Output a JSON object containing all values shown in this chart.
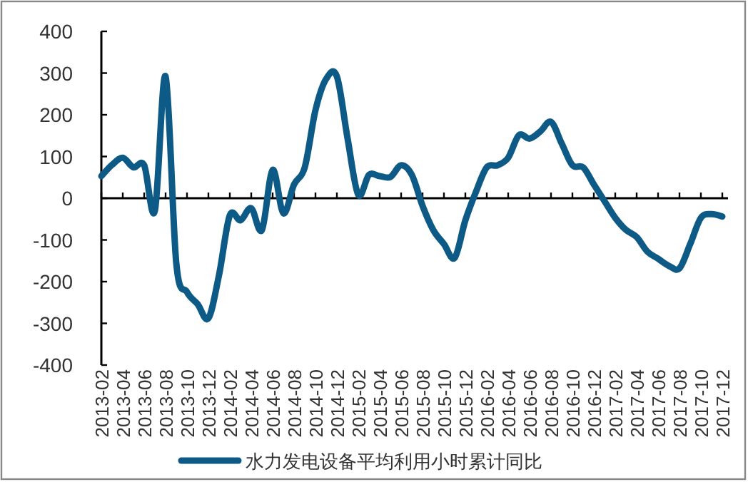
{
  "chart_data": {
    "type": "line",
    "categories": [
      "2013-02",
      null,
      "2013-04",
      null,
      "2013-06",
      null,
      "2013-08",
      null,
      "2013-10",
      null,
      "2013-12",
      null,
      "2014-02",
      null,
      "2014-04",
      null,
      "2014-06",
      null,
      "2014-08",
      null,
      "2014-10",
      null,
      "2014-12",
      null,
      "2015-02",
      null,
      "2015-04",
      null,
      "2015-06",
      null,
      "2015-08",
      null,
      "2015-10",
      null,
      "2015-12",
      null,
      "2016-02",
      null,
      "2016-04",
      null,
      "2016-06",
      null,
      "2016-08",
      null,
      "2016-10",
      null,
      "2016-12",
      null,
      "2017-02",
      null,
      "2017-04",
      null,
      "2017-06",
      null,
      "2017-08",
      null,
      "2017-10",
      null,
      "2017-12"
    ],
    "series": [
      {
        "name": "水力发电设备平均利用小时累计同比",
        "color": "#0e5a87",
        "values": [
          53,
          80,
          97,
          74,
          79,
          -30,
          292,
          -156,
          -225,
          -254,
          -288,
          -183,
          -41,
          -53,
          -24,
          -76,
          68,
          -36,
          33,
          74,
          211,
          286,
          292,
          143,
          8,
          56,
          53,
          51,
          79,
          56,
          -18,
          -76,
          -110,
          -143,
          -53,
          16,
          74,
          79,
          97,
          151,
          143,
          160,
          183,
          131,
          79,
          74,
          33,
          -7,
          -47,
          -76,
          -93,
          -128,
          -145,
          -162,
          -168,
          -110,
          -47,
          -38,
          -44
        ]
      }
    ],
    "ylim": [
      -400,
      400
    ],
    "yticks": [
      -400,
      -300,
      -200,
      -100,
      0,
      100,
      200,
      300,
      400
    ],
    "legend": "bottom"
  }
}
